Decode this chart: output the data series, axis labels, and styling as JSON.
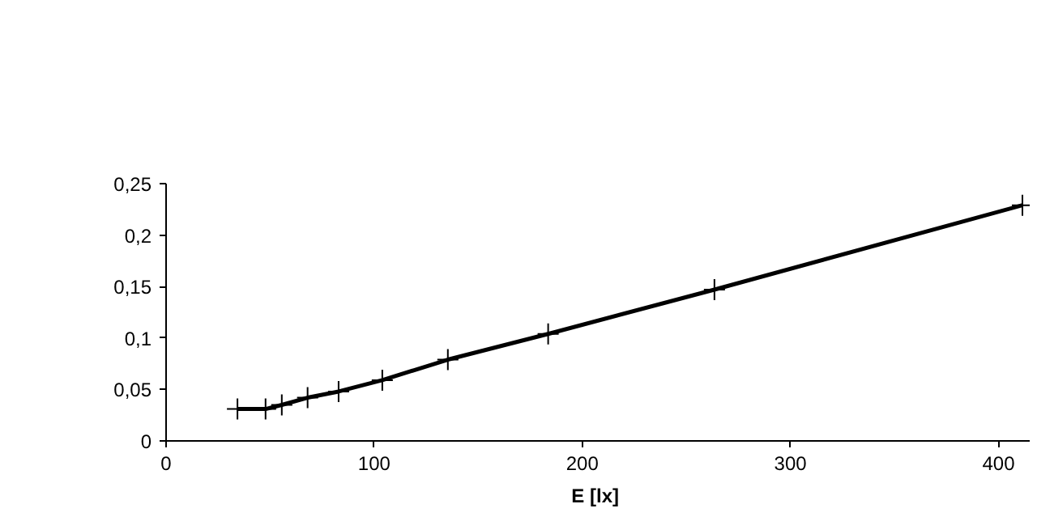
{
  "chart_data": {
    "type": "line",
    "xlabel": "E  [lx]",
    "x": [
      34.3,
      47.8,
      55.6,
      68.0,
      82.9,
      103.9,
      135.4,
      183.6,
      263.5,
      411.5
    ],
    "series": [
      {
        "color": "#000000",
        "values": [
          0.031,
          0.031,
          0.035,
          0.042,
          0.048,
          0.059,
          0.079,
          0.104,
          0.147,
          0.229
        ]
      }
    ],
    "xlim": [
      0,
      415
    ],
    "ylim": [
      0,
      0.25
    ],
    "xticks": [
      0,
      100,
      200,
      300,
      400
    ],
    "yticks": [
      0,
      {
        "value": 0.05,
        "label": "0,05"
      },
      {
        "value": 0.1,
        "label": "0,1"
      },
      {
        "value": 0.15,
        "label": "0,15"
      },
      {
        "value": 0.2,
        "label": "0,2"
      },
      {
        "value": 0.25,
        "label": "0,25"
      }
    ],
    "marker": "cross",
    "line_style": "solid"
  }
}
